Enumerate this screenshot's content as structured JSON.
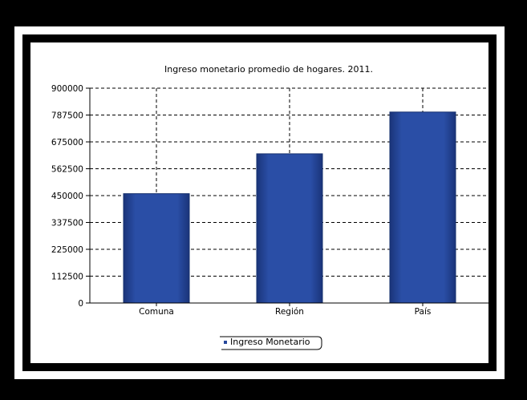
{
  "chart_data": {
    "type": "bar",
    "title": "Ingreso monetario promedio de hogares. 2011.",
    "categories": [
      "Comuna",
      "Región",
      "País"
    ],
    "series": [
      {
        "name": "Ingreso Monetario",
        "values": [
          458000,
          625000,
          800000
        ]
      }
    ],
    "ylim": [
      0,
      900000
    ],
    "yticks": [
      "900000",
      "787500",
      "675000",
      "562500",
      "450000",
      "337500",
      "225000",
      "112500",
      "0"
    ],
    "grid": "horizontal-and-vertical-dashed",
    "legend": "bottom-center",
    "colors": {
      "bar": "#26479a",
      "bar_edge": "#16306e",
      "grid": "#000000"
    }
  }
}
